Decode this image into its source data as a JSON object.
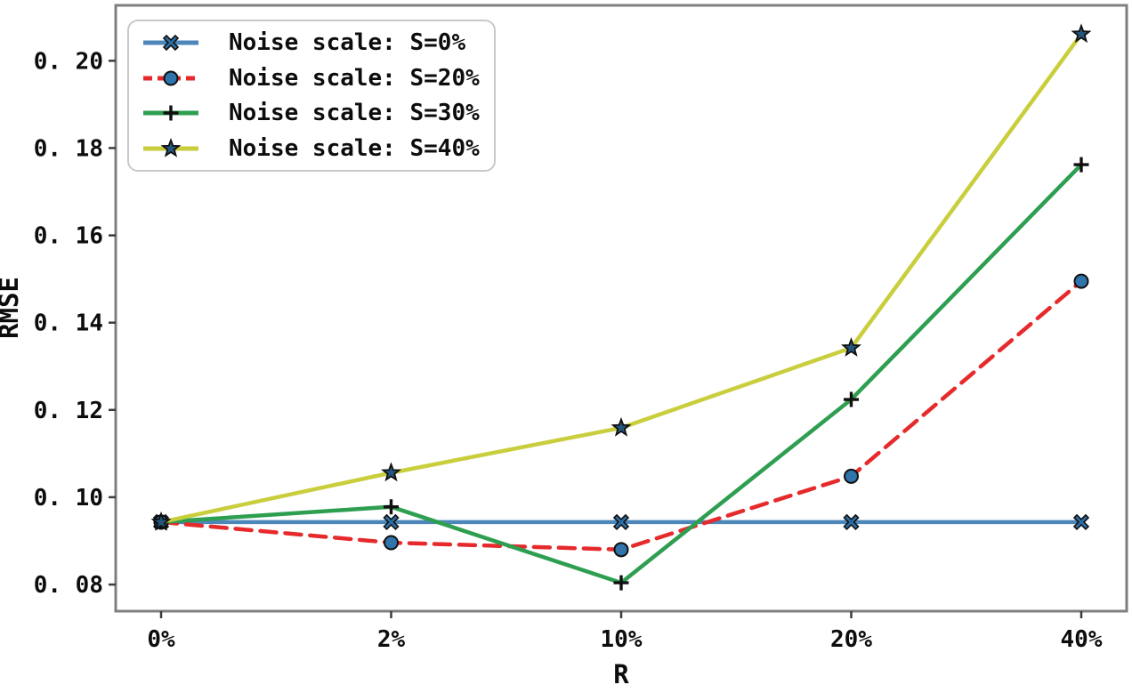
{
  "figure": {
    "background": "#ffffff",
    "axis_color": "#7f7f7f",
    "tick_color": "#3c3c3c",
    "text_color": "#0d0d0d",
    "legend_border_color": "#c9c9c9",
    "legend_background": "#ffffff"
  },
  "chart_data": {
    "type": "line",
    "title": "",
    "xlabel": "R",
    "ylabel": "RMSE",
    "categories": [
      "0%",
      "2%",
      "10%",
      "20%",
      "40%"
    ],
    "yticks": [
      0.08,
      0.1,
      0.12,
      0.14,
      0.16,
      0.18,
      0.2
    ],
    "ytick_labels": [
      "0. 08",
      "0. 10",
      "0. 12",
      "0. 14",
      "0. 16",
      "0. 18",
      "0. 20"
    ],
    "ylim": [
      0.0739,
      0.2127
    ],
    "grid": false,
    "legend_position": "upper-left",
    "series": [
      {
        "name": "Noise scale: S=0%",
        "color": "#4d86b9",
        "dash": "solid",
        "marker": "x-square",
        "marker_fill": "#2b6ea5",
        "values": [
          0.0943,
          0.0943,
          0.0943,
          0.0943,
          0.0943
        ]
      },
      {
        "name": "Noise scale: S=20%",
        "color": "#e62a2c",
        "dash": "dashed",
        "marker": "circle",
        "marker_fill": "#2f74ab",
        "values": [
          0.0943,
          0.0896,
          0.088,
          0.1048,
          0.1495
        ]
      },
      {
        "name": "Noise scale: S=30%",
        "color": "#2e9e50",
        "dash": "solid",
        "marker": "plus",
        "marker_fill": "#101010",
        "values": [
          0.0943,
          0.0978,
          0.0804,
          0.1224,
          0.1762
        ]
      },
      {
        "name": "Noise scale: S=40%",
        "color": "#c9ce3d",
        "dash": "solid",
        "marker": "star",
        "marker_fill": "#24567e",
        "values": [
          0.0943,
          0.1056,
          0.1159,
          0.1342,
          0.2061
        ]
      }
    ]
  }
}
